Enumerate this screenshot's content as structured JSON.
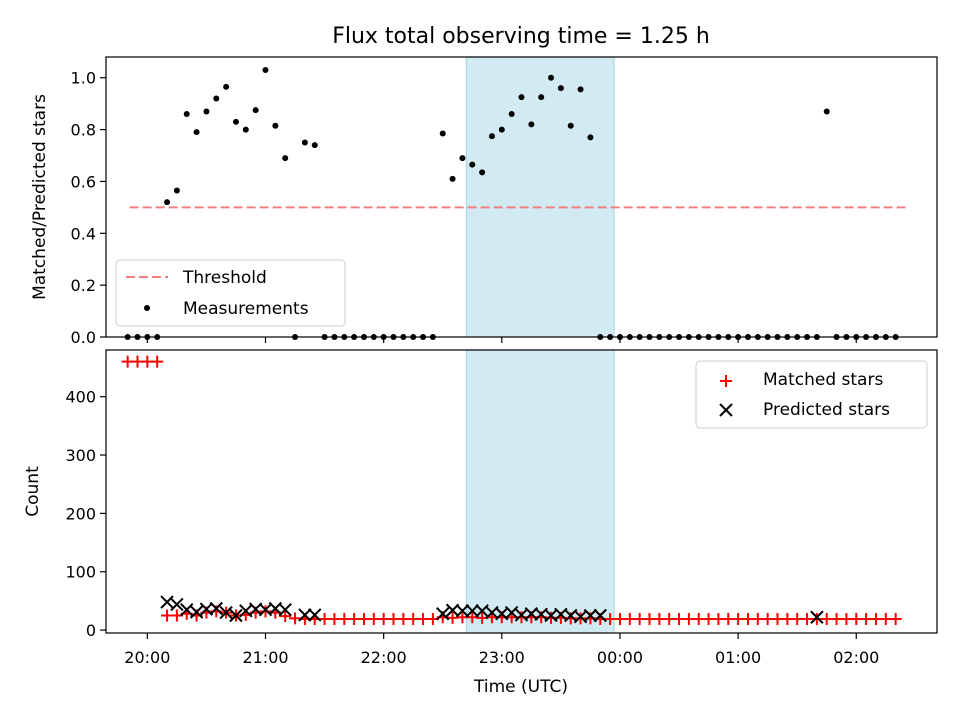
{
  "title": "Flux total observing time = 1.25 h",
  "x_axis": {
    "label": "Time (UTC)",
    "ticks": [
      {
        "t": 0,
        "label": "20:00"
      },
      {
        "t": 60,
        "label": "21:00"
      },
      {
        "t": 120,
        "label": "22:00"
      },
      {
        "t": 180,
        "label": "23:00"
      },
      {
        "t": 240,
        "label": "00:00"
      },
      {
        "t": 300,
        "label": "01:00"
      },
      {
        "t": 360,
        "label": "02:00"
      }
    ]
  },
  "highlight_band": {
    "start_label": "22:42",
    "end_label": "23:57",
    "color": "#add8e6"
  },
  "chart_data": [
    {
      "type": "scatter",
      "ylabel": "Matched/Predicted stars",
      "ylim": [
        0,
        1.08
      ],
      "xlim_minutes_from_2000": [
        -21,
        401
      ],
      "yticks": [
        "0.0",
        "0.2",
        "0.4",
        "0.6",
        "0.8",
        "1.0"
      ],
      "legend": {
        "position": "lower left",
        "entries": [
          "Threshold",
          "Measurements"
        ]
      },
      "threshold": {
        "name": "Threshold",
        "y": 0.5,
        "x_range_minutes": [
          -9,
          385
        ],
        "color": "#f08080"
      },
      "measurements": {
        "name": "Measurements",
        "color": "#000000",
        "x_minutes": [
          -10,
          -5,
          0,
          5,
          10,
          15,
          20,
          25,
          30,
          35,
          40,
          45,
          50,
          55,
          60,
          65,
          70,
          75,
          80,
          85,
          90,
          95,
          100,
          105,
          110,
          115,
          120,
          125,
          130,
          135,
          140,
          145,
          150,
          155,
          160,
          165,
          170,
          175,
          180,
          185,
          190,
          195,
          200,
          205,
          210,
          215,
          220,
          225,
          230,
          235,
          240,
          245,
          250,
          255,
          260,
          265,
          270,
          275,
          280,
          285,
          290,
          295,
          300,
          305,
          310,
          315,
          320,
          325,
          330,
          335,
          340,
          345,
          350,
          355,
          360,
          365,
          370,
          375,
          380
        ],
        "y": [
          0,
          0,
          0,
          0,
          0.52,
          0.565,
          0.86,
          0.79,
          0.87,
          0.92,
          0.965,
          0.83,
          0.8,
          0.875,
          1.03,
          0.815,
          0.69,
          0,
          0.75,
          0.74,
          0,
          0,
          0,
          0,
          0,
          0,
          0,
          0,
          0,
          0,
          0,
          0,
          0.785,
          0.61,
          0.69,
          0.665,
          0.635,
          0.775,
          0.8,
          0.86,
          0.925,
          0.82,
          0.925,
          1.0,
          0.96,
          0.815,
          0.955,
          0.77,
          0,
          0,
          0,
          0,
          0,
          0,
          0,
          0,
          0,
          0,
          0,
          0,
          0,
          0,
          0,
          0,
          0,
          0,
          0,
          0,
          0,
          0,
          0,
          0.87,
          0,
          0,
          0,
          0,
          0,
          0,
          0
        ]
      }
    },
    {
      "type": "scatter",
      "ylabel": "Count",
      "ylim": [
        -5,
        480
      ],
      "xlim_minutes_from_2000": [
        -21,
        401
      ],
      "yticks": [
        "0",
        "100",
        "200",
        "300",
        "400"
      ],
      "legend": {
        "position": "upper right",
        "entries": [
          "Matched stars",
          "Predicted stars"
        ]
      },
      "series": [
        {
          "name": "Matched stars",
          "marker": "+",
          "color": "#ff0000",
          "x_minutes": [
            -10,
            -5,
            0,
            5,
            10,
            15,
            20,
            25,
            30,
            35,
            40,
            45,
            50,
            55,
            60,
            65,
            70,
            75,
            80,
            85,
            90,
            95,
            100,
            105,
            110,
            115,
            120,
            125,
            130,
            135,
            140,
            145,
            150,
            155,
            160,
            165,
            170,
            175,
            180,
            185,
            190,
            195,
            200,
            205,
            210,
            215,
            220,
            225,
            230,
            235,
            240,
            245,
            250,
            255,
            260,
            265,
            270,
            275,
            280,
            285,
            290,
            295,
            300,
            305,
            310,
            315,
            320,
            325,
            330,
            335,
            340,
            345,
            350,
            355,
            360,
            365,
            370,
            375,
            380
          ],
          "y": [
            460,
            460,
            460,
            460,
            25,
            25,
            28,
            25,
            30,
            32,
            30,
            25,
            26,
            30,
            32,
            30,
            24,
            20,
            19,
            19,
            19,
            19,
            19,
            19,
            19,
            19,
            19,
            19,
            19,
            19,
            19,
            19,
            22,
            21,
            22,
            22,
            21,
            22,
            22,
            22,
            22,
            22,
            22,
            21,
            21,
            20,
            20,
            20,
            19,
            19,
            19,
            19,
            19,
            19,
            19,
            19,
            19,
            19,
            19,
            19,
            19,
            19,
            19,
            19,
            19,
            19,
            19,
            19,
            19,
            19,
            19,
            19,
            19,
            19,
            19,
            19,
            19,
            19,
            19
          ]
        },
        {
          "name": "Predicted stars",
          "marker": "x",
          "color": "#000000",
          "x_minutes": [
            10,
            15,
            20,
            25,
            30,
            35,
            40,
            45,
            50,
            55,
            60,
            65,
            70,
            80,
            85,
            150,
            155,
            160,
            165,
            170,
            175,
            180,
            185,
            190,
            195,
            200,
            205,
            210,
            215,
            220,
            225,
            230,
            340
          ],
          "y": [
            48,
            44,
            35,
            31,
            36,
            37,
            30,
            25,
            33,
            36,
            35,
            37,
            35,
            26,
            26,
            28,
            34,
            33,
            33,
            33,
            30,
            28,
            30,
            26,
            28,
            27,
            25,
            27,
            25,
            23,
            25,
            25,
            22
          ]
        }
      ]
    }
  ]
}
